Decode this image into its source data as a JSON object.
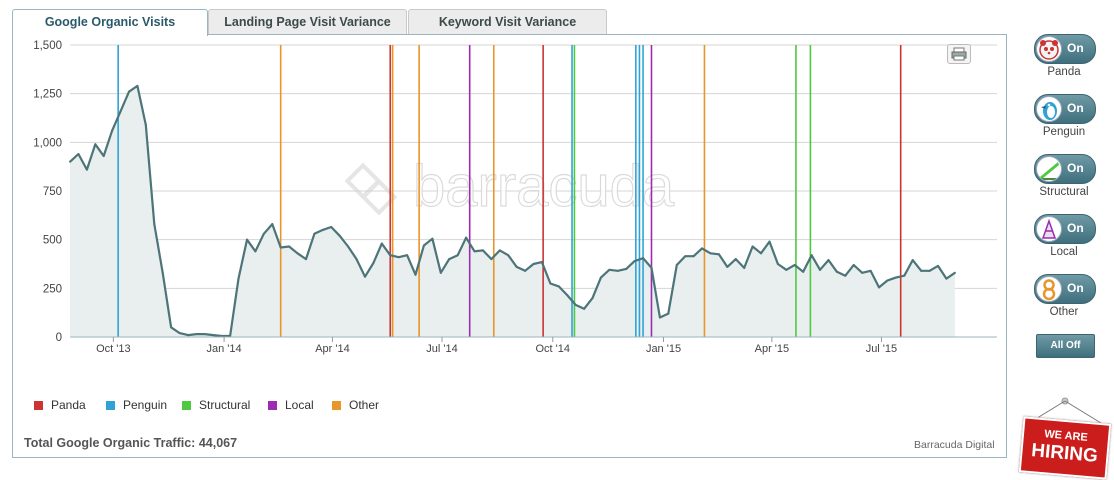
{
  "tabs": [
    {
      "label": "Google Organic Visits"
    },
    {
      "label": "Landing Page Visit Variance"
    },
    {
      "label": "Keyword Visit Variance"
    }
  ],
  "watermark": "barracuda",
  "summary": {
    "label": "Total Google Organic Traffic:",
    "value": "44,067"
  },
  "credit": "Barracuda Digital",
  "toggles": [
    {
      "name": "Panda",
      "state": "On",
      "icon": "panda-icon",
      "color": "#cc3333"
    },
    {
      "name": "Penguin",
      "state": "On",
      "icon": "penguin-icon",
      "color": "#2fa3d6"
    },
    {
      "name": "Structural",
      "state": "On",
      "icon": "structural-icon",
      "color": "#4fc93f"
    },
    {
      "name": "Local",
      "state": "On",
      "icon": "local-icon",
      "color": "#9b2bb0"
    },
    {
      "name": "Other",
      "state": "On",
      "icon": "other-icon",
      "color": "#e8952a"
    }
  ],
  "all_off_label": "All Off",
  "hiring": {
    "line1": "WE ARE",
    "line2": "HIRING"
  },
  "chart_data": {
    "type": "area",
    "title": "",
    "xlabel": "",
    "ylabel": "",
    "ylim": [
      0,
      1500
    ],
    "yticks": [
      0,
      250,
      500,
      750,
      1000,
      1250,
      1500
    ],
    "ytick_labels": [
      "0",
      "250",
      "500",
      "750",
      "1,000",
      "1,250",
      "1,500"
    ],
    "xlim": [
      "2013-08-26",
      "2015-10-05"
    ],
    "xticks": [
      {
        "date": "2013-10-01",
        "label": "Oct '13"
      },
      {
        "date": "2014-01-01",
        "label": "Jan '14"
      },
      {
        "date": "2014-04-01",
        "label": "Apr '14"
      },
      {
        "date": "2014-07-01",
        "label": "Jul '14"
      },
      {
        "date": "2014-10-01",
        "label": "Oct '14"
      },
      {
        "date": "2015-01-01",
        "label": "Jan '15"
      },
      {
        "date": "2015-04-01",
        "label": "Apr '15"
      },
      {
        "date": "2015-07-01",
        "label": "Jul '15"
      }
    ],
    "grid": true,
    "legend_position": "bottom-left",
    "line_color": "#4c7479",
    "fill_color": "#e9efee",
    "series": [
      {
        "values": [
          [
            "2013-08-26",
            900
          ],
          [
            "2013-09-02",
            940
          ],
          [
            "2013-09-09",
            860
          ],
          [
            "2013-09-16",
            990
          ],
          [
            "2013-09-23",
            930
          ],
          [
            "2013-09-30",
            1060
          ],
          [
            "2013-10-07",
            1160
          ],
          [
            "2013-10-14",
            1260
          ],
          [
            "2013-10-21",
            1290
          ],
          [
            "2013-10-28",
            1090
          ],
          [
            "2013-11-04",
            580
          ],
          [
            "2013-11-11",
            330
          ],
          [
            "2013-11-18",
            50
          ],
          [
            "2013-11-25",
            20
          ],
          [
            "2013-12-02",
            10
          ],
          [
            "2013-12-09",
            15
          ],
          [
            "2013-12-16",
            15
          ],
          [
            "2013-12-23",
            10
          ],
          [
            "2013-12-30",
            5
          ],
          [
            "2014-01-06",
            5
          ],
          [
            "2014-01-13",
            300
          ],
          [
            "2014-01-20",
            500
          ],
          [
            "2014-01-27",
            440
          ],
          [
            "2014-02-03",
            530
          ],
          [
            "2014-02-10",
            580
          ],
          [
            "2014-02-17",
            460
          ],
          [
            "2014-02-24",
            465
          ],
          [
            "2014-03-03",
            430
          ],
          [
            "2014-03-10",
            400
          ],
          [
            "2014-03-17",
            530
          ],
          [
            "2014-03-24",
            550
          ],
          [
            "2014-03-31",
            565
          ],
          [
            "2014-04-07",
            520
          ],
          [
            "2014-04-14",
            465
          ],
          [
            "2014-04-21",
            400
          ],
          [
            "2014-04-28",
            310
          ],
          [
            "2014-05-05",
            380
          ],
          [
            "2014-05-12",
            480
          ],
          [
            "2014-05-19",
            420
          ],
          [
            "2014-05-26",
            410
          ],
          [
            "2014-06-02",
            420
          ],
          [
            "2014-06-09",
            320
          ],
          [
            "2014-06-16",
            470
          ],
          [
            "2014-06-23",
            505
          ],
          [
            "2014-06-30",
            330
          ],
          [
            "2014-07-07",
            400
          ],
          [
            "2014-07-14",
            420
          ],
          [
            "2014-07-21",
            510
          ],
          [
            "2014-07-28",
            440
          ],
          [
            "2014-08-04",
            445
          ],
          [
            "2014-08-11",
            400
          ],
          [
            "2014-08-18",
            445
          ],
          [
            "2014-08-25",
            420
          ],
          [
            "2014-09-01",
            360
          ],
          [
            "2014-09-08",
            340
          ],
          [
            "2014-09-15",
            375
          ],
          [
            "2014-09-22",
            385
          ],
          [
            "2014-09-29",
            275
          ],
          [
            "2014-10-06",
            260
          ],
          [
            "2014-10-13",
            215
          ],
          [
            "2014-10-20",
            165
          ],
          [
            "2014-10-27",
            145
          ],
          [
            "2014-11-03",
            200
          ],
          [
            "2014-11-10",
            305
          ],
          [
            "2014-11-17",
            345
          ],
          [
            "2014-11-24",
            340
          ],
          [
            "2014-12-01",
            350
          ],
          [
            "2014-12-08",
            390
          ],
          [
            "2014-12-15",
            405
          ],
          [
            "2014-12-22",
            355
          ],
          [
            "2014-12-29",
            100
          ],
          [
            "2015-01-05",
            120
          ],
          [
            "2015-01-12",
            370
          ],
          [
            "2015-01-19",
            415
          ],
          [
            "2015-01-26",
            415
          ],
          [
            "2015-02-02",
            455
          ],
          [
            "2015-02-09",
            430
          ],
          [
            "2015-02-16",
            425
          ],
          [
            "2015-02-23",
            360
          ],
          [
            "2015-03-02",
            400
          ],
          [
            "2015-03-09",
            355
          ],
          [
            "2015-03-16",
            465
          ],
          [
            "2015-03-23",
            430
          ],
          [
            "2015-03-30",
            490
          ],
          [
            "2015-04-06",
            375
          ],
          [
            "2015-04-13",
            345
          ],
          [
            "2015-04-20",
            370
          ],
          [
            "2015-04-27",
            335
          ],
          [
            "2015-05-04",
            420
          ],
          [
            "2015-05-11",
            345
          ],
          [
            "2015-05-18",
            395
          ],
          [
            "2015-05-25",
            335
          ],
          [
            "2015-06-01",
            315
          ],
          [
            "2015-06-08",
            370
          ],
          [
            "2015-06-15",
            330
          ],
          [
            "2015-06-22",
            340
          ],
          [
            "2015-06-29",
            255
          ],
          [
            "2015-07-06",
            290
          ],
          [
            "2015-07-13",
            305
          ],
          [
            "2015-07-20",
            315
          ],
          [
            "2015-07-27",
            395
          ],
          [
            "2015-08-03",
            340
          ],
          [
            "2015-08-10",
            340
          ],
          [
            "2015-08-17",
            365
          ],
          [
            "2015-08-24",
            300
          ],
          [
            "2015-08-31",
            330
          ]
        ]
      }
    ],
    "legend": [
      {
        "label": "Panda",
        "color": "#cc3333"
      },
      {
        "label": "Penguin",
        "color": "#2fa3d6"
      },
      {
        "label": "Structural",
        "color": "#4fc93f"
      },
      {
        "label": "Local",
        "color": "#9b2bb0"
      },
      {
        "label": "Other",
        "color": "#e8952a"
      }
    ],
    "events": [
      {
        "date": "2013-10-05",
        "category": "Penguin"
      },
      {
        "date": "2014-02-17",
        "category": "Other"
      },
      {
        "date": "2014-05-19",
        "category": "Panda"
      },
      {
        "date": "2014-05-21",
        "category": "Other"
      },
      {
        "date": "2014-06-12",
        "category": "Other"
      },
      {
        "date": "2014-07-24",
        "category": "Local"
      },
      {
        "date": "2014-08-13",
        "category": "Other"
      },
      {
        "date": "2014-09-23",
        "category": "Panda"
      },
      {
        "date": "2014-10-17",
        "category": "Penguin"
      },
      {
        "date": "2014-10-19",
        "category": "Structural"
      },
      {
        "date": "2014-12-09",
        "category": "Penguin"
      },
      {
        "date": "2014-12-12",
        "category": "Penguin"
      },
      {
        "date": "2014-12-15",
        "category": "Penguin"
      },
      {
        "date": "2014-12-22",
        "category": "Local"
      },
      {
        "date": "2015-02-04",
        "category": "Other"
      },
      {
        "date": "2015-04-21",
        "category": "Structural"
      },
      {
        "date": "2015-05-03",
        "category": "Structural"
      },
      {
        "date": "2015-07-17",
        "category": "Panda"
      }
    ]
  }
}
